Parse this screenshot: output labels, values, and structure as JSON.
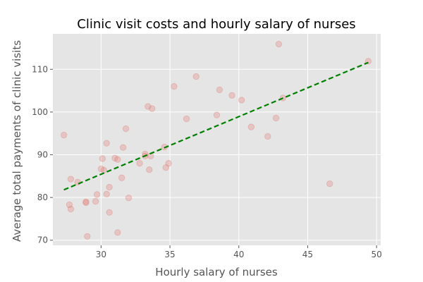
{
  "chart_data": {
    "type": "scatter",
    "title": "Clinic visit costs and hourly salary of nurses",
    "xlabel": "Hourly salary of nurses",
    "ylabel": "Average total payments of clinic visits",
    "xlim": [
      26.5,
      50.3
    ],
    "ylim": [
      68.8,
      118.3
    ],
    "xticks": [
      30,
      35,
      40,
      45,
      50
    ],
    "yticks": [
      70,
      80,
      90,
      100,
      110
    ],
    "grid": true,
    "colors": {
      "background": "#e5e5e5",
      "grid": "#ffffff",
      "points": "#e07b74",
      "trend": "#008000",
      "text": "#555555"
    },
    "points": [
      [
        27.3,
        94.6
      ],
      [
        27.7,
        78.3
      ],
      [
        27.8,
        77.3
      ],
      [
        27.8,
        84.3
      ],
      [
        28.3,
        83.6
      ],
      [
        28.9,
        78.8
      ],
      [
        28.9,
        79.0
      ],
      [
        29.0,
        70.9
      ],
      [
        29.6,
        79.1
      ],
      [
        29.7,
        80.7
      ],
      [
        30.0,
        86.7
      ],
      [
        30.1,
        89.1
      ],
      [
        30.2,
        86.4
      ],
      [
        30.4,
        92.7
      ],
      [
        30.4,
        80.8
      ],
      [
        30.6,
        76.5
      ],
      [
        30.6,
        82.4
      ],
      [
        31.0,
        89.2
      ],
      [
        31.2,
        71.8
      ],
      [
        31.2,
        88.9
      ],
      [
        31.5,
        84.6
      ],
      [
        31.6,
        91.7
      ],
      [
        31.8,
        96.1
      ],
      [
        32.0,
        79.9
      ],
      [
        32.8,
        88.0
      ],
      [
        33.2,
        89.7
      ],
      [
        33.2,
        90.2
      ],
      [
        33.4,
        101.3
      ],
      [
        33.5,
        86.5
      ],
      [
        33.6,
        89.7
      ],
      [
        33.7,
        100.8
      ],
      [
        34.6,
        91.8
      ],
      [
        34.7,
        87.0
      ],
      [
        34.9,
        88.0
      ],
      [
        35.3,
        106.0
      ],
      [
        36.2,
        98.4
      ],
      [
        36.9,
        108.3
      ],
      [
        38.4,
        99.3
      ],
      [
        38.6,
        105.2
      ],
      [
        39.5,
        103.9
      ],
      [
        40.2,
        102.8
      ],
      [
        40.9,
        96.5
      ],
      [
        42.1,
        94.3
      ],
      [
        42.7,
        98.6
      ],
      [
        42.9,
        115.9
      ],
      [
        43.2,
        103.3
      ],
      [
        46.6,
        83.2
      ],
      [
        49.4,
        111.9
      ]
    ],
    "trendline": {
      "style": "dashed",
      "x": [
        27.3,
        49.4
      ],
      "y": [
        81.8,
        111.6
      ]
    }
  }
}
